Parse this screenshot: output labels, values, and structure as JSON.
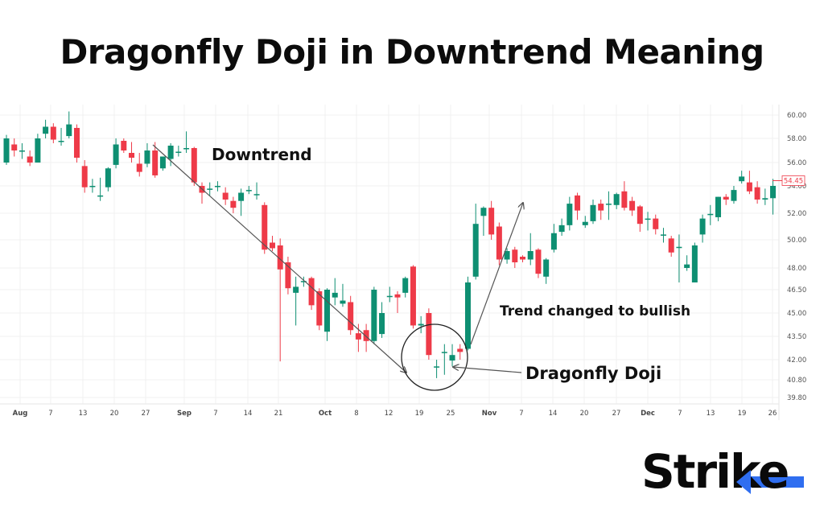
{
  "title": "Dragonfly Doji in Downtrend Meaning",
  "logo_text": "Strike",
  "colors": {
    "up": "#0e8f72",
    "down": "#ee3a48",
    "grid": "#f1f1f1",
    "annotation": "#555555",
    "logo_accent": "#2f6ef0"
  },
  "chart_data": {
    "type": "candlestick",
    "title": "Dragonfly Doji in Downtrend Meaning",
    "grid": true,
    "y_ticks": [
      "60.00",
      "58.00",
      "56.00",
      "54.00",
      "52.00",
      "50.00",
      "48.00",
      "46.50",
      "45.00",
      "43.50",
      "42.00",
      "40.80",
      "39.80"
    ],
    "x_ticks": [
      "Aug",
      "7",
      "13",
      "20",
      "27",
      "Sep",
      "7",
      "14",
      "21",
      "Oct",
      "8",
      "12",
      "19",
      "25",
      "Nov",
      "7",
      "14",
      "20",
      "27",
      "Dec",
      "7",
      "13",
      "19",
      "26"
    ],
    "last_price": "54.45",
    "candles": [
      [
        56.0,
        58.3,
        55.8,
        58.0
      ],
      [
        57.5,
        58.0,
        56.5,
        57.0
      ],
      [
        57.0,
        57.6,
        56.3,
        57.0
      ],
      [
        56.5,
        57.0,
        55.7,
        56.0
      ],
      [
        56.0,
        58.4,
        56.0,
        58.0
      ],
      [
        58.4,
        59.6,
        58.0,
        59.0
      ],
      [
        59.0,
        59.3,
        57.6,
        57.9
      ],
      [
        57.8,
        58.9,
        57.4,
        57.8
      ],
      [
        58.2,
        60.3,
        58.0,
        59.2
      ],
      [
        58.9,
        59.2,
        56.0,
        56.4
      ],
      [
        55.7,
        56.2,
        53.5,
        53.9
      ],
      [
        54.0,
        54.6,
        53.5,
        54.0
      ],
      [
        53.3,
        54.7,
        52.9,
        53.3
      ],
      [
        53.9,
        55.6,
        53.6,
        55.5
      ],
      [
        55.8,
        58.0,
        55.5,
        57.5
      ],
      [
        57.8,
        58.0,
        56.8,
        57.0
      ],
      [
        56.8,
        57.7,
        56.0,
        56.4
      ],
      [
        55.9,
        56.8,
        54.8,
        55.2
      ],
      [
        55.9,
        57.6,
        55.6,
        57.0
      ],
      [
        57.0,
        57.7,
        54.7,
        54.9
      ],
      [
        55.5,
        56.5,
        55.3,
        56.5
      ],
      [
        56.3,
        57.6,
        55.7,
        57.4
      ],
      [
        56.9,
        57.4,
        56.5,
        56.9
      ],
      [
        57.2,
        58.6,
        56.8,
        57.2
      ],
      [
        57.2,
        57.3,
        54.0,
        54.3
      ],
      [
        54.0,
        54.3,
        52.7,
        53.5
      ],
      [
        53.8,
        54.3,
        53.3,
        53.8
      ],
      [
        54.0,
        54.4,
        53.6,
        54.0
      ],
      [
        53.5,
        53.9,
        52.6,
        53.0
      ],
      [
        52.9,
        53.2,
        52.0,
        52.4
      ],
      [
        52.9,
        53.8,
        51.8,
        53.5
      ],
      [
        53.7,
        54.0,
        53.4,
        53.7
      ],
      [
        53.4,
        54.3,
        53.0,
        53.4
      ],
      [
        52.6,
        52.8,
        49.0,
        49.3
      ],
      [
        49.8,
        50.3,
        49.2,
        49.4
      ],
      [
        49.6,
        50.1,
        41.9,
        47.9
      ],
      [
        48.4,
        48.8,
        46.2,
        46.6
      ],
      [
        46.3,
        47.4,
        44.2,
        46.7
      ],
      [
        47.1,
        47.4,
        46.7,
        47.1
      ],
      [
        47.3,
        47.4,
        45.2,
        45.5
      ],
      [
        46.4,
        46.6,
        43.9,
        44.2
      ],
      [
        43.8,
        46.6,
        43.2,
        46.5
      ],
      [
        46.0,
        47.3,
        45.5,
        46.3
      ],
      [
        45.6,
        46.9,
        45.4,
        45.8
      ],
      [
        45.7,
        46.1,
        43.6,
        43.9
      ],
      [
        43.7,
        44.3,
        42.5,
        43.3
      ],
      [
        43.9,
        44.3,
        42.5,
        43.2
      ],
      [
        43.2,
        46.7,
        43.0,
        46.5
      ],
      [
        43.65,
        45.7,
        43.4,
        45.0
      ],
      [
        46.1,
        46.7,
        45.7,
        46.1
      ],
      [
        46.2,
        46.4,
        45.0,
        46.0
      ],
      [
        46.3,
        47.4,
        46.0,
        47.3
      ],
      [
        48.1,
        48.2,
        44.0,
        44.2
      ],
      [
        44.2,
        44.8,
        43.7,
        44.3
      ],
      [
        45.0,
        45.3,
        42.0,
        42.3
      ],
      [
        41.6,
        42.0,
        40.9,
        41.6
      ],
      [
        42.5,
        43.0,
        41.1,
        42.5
      ],
      [
        41.95,
        43.0,
        41.6,
        42.3
      ],
      [
        42.7,
        43.0,
        42.0,
        42.5
      ],
      [
        42.7,
        47.4,
        42.6,
        47.0
      ],
      [
        47.4,
        52.7,
        47.2,
        51.2
      ],
      [
        51.8,
        52.5,
        50.3,
        52.4
      ],
      [
        52.4,
        52.9,
        50.0,
        50.4
      ],
      [
        51.0,
        51.3,
        48.2,
        48.6
      ],
      [
        48.6,
        49.4,
        48.3,
        49.2
      ],
      [
        49.3,
        49.5,
        48.0,
        48.4
      ],
      [
        48.8,
        48.9,
        48.4,
        48.6
      ],
      [
        48.6,
        50.5,
        48.2,
        49.2
      ],
      [
        49.3,
        49.4,
        47.3,
        47.6
      ],
      [
        47.4,
        48.7,
        46.9,
        48.6
      ],
      [
        49.3,
        51.2,
        49.1,
        50.5
      ],
      [
        50.6,
        51.6,
        50.3,
        51.1
      ],
      [
        51.1,
        53.2,
        50.7,
        52.7
      ],
      [
        53.3,
        53.5,
        51.5,
        52.2
      ],
      [
        51.1,
        51.8,
        50.9,
        51.35
      ],
      [
        51.4,
        53.0,
        51.2,
        52.6
      ],
      [
        52.7,
        53.0,
        51.5,
        52.2
      ],
      [
        52.7,
        53.6,
        51.5,
        52.7
      ],
      [
        52.6,
        53.5,
        52.3,
        53.4
      ],
      [
        53.6,
        54.4,
        52.2,
        52.4
      ],
      [
        52.9,
        53.2,
        51.8,
        52.2
      ],
      [
        52.5,
        52.6,
        50.6,
        51.2
      ],
      [
        51.6,
        52.1,
        50.7,
        51.6
      ],
      [
        51.6,
        51.9,
        50.4,
        50.8
      ],
      [
        50.4,
        50.9,
        49.8,
        50.4
      ],
      [
        50.1,
        50.3,
        48.8,
        49.1
      ],
      [
        49.5,
        50.4,
        47.0,
        49.5
      ],
      [
        48.0,
        48.9,
        47.8,
        48.25
      ],
      [
        47.0,
        49.8,
        47.0,
        49.6
      ],
      [
        50.4,
        51.9,
        49.8,
        51.6
      ],
      [
        51.95,
        52.6,
        51.1,
        51.95
      ],
      [
        51.7,
        53.2,
        51.4,
        53.2
      ],
      [
        53.2,
        53.4,
        52.6,
        53.0
      ],
      [
        52.9,
        54.0,
        52.7,
        53.7
      ],
      [
        54.4,
        55.3,
        54.2,
        54.8
      ],
      [
        54.3,
        55.3,
        53.4,
        53.6
      ],
      [
        53.9,
        54.4,
        52.7,
        53.0
      ],
      [
        53.0,
        53.8,
        52.6,
        53.1
      ],
      [
        53.1,
        54.6,
        51.9,
        54.0
      ]
    ],
    "annotations": [
      "Downtrend",
      "Trend changed to bullish",
      "Dragonfly Doji"
    ]
  }
}
